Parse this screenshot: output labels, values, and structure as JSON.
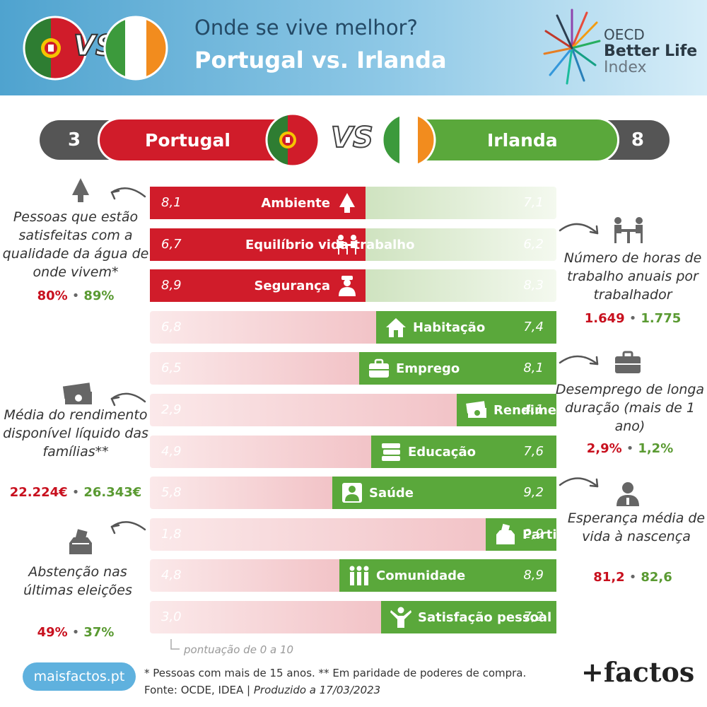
{
  "header": {
    "title_line1": "Onde se vive melhor?",
    "title_line2": "Portugal vs. Irlanda",
    "vs": "VS",
    "oecd_line1": "OECD",
    "oecd_line2": "Better Life",
    "oecd_line3": "Index"
  },
  "scoreboard": {
    "left_score": "3",
    "left_country": "Portugal",
    "vs": "VS",
    "right_country": "Irlanda",
    "right_score": "8"
  },
  "colors": {
    "portugal": "#d01c2a",
    "ireland": "#5aa83b",
    "portugal_light": "#f2c3c7",
    "ireland_light": "#cfe3c0"
  },
  "chart_data": {
    "type": "bar",
    "ylim": [
      0,
      10
    ],
    "series": [
      {
        "name": "Portugal"
      },
      {
        "name": "Irlanda"
      }
    ],
    "categories": [
      {
        "label": "Ambiente",
        "pt": "8,1",
        "ie": "7,1",
        "pt_val": 8.1,
        "ie_val": 7.1,
        "icon": "tree-icon"
      },
      {
        "label": "Equilíbrio vida-trabalho",
        "pt": "6,7",
        "ie": "6,2",
        "pt_val": 6.7,
        "ie_val": 6.2,
        "icon": "people-table-icon"
      },
      {
        "label": "Segurança",
        "pt": "8,9",
        "ie": "8,3",
        "pt_val": 8.9,
        "ie_val": 8.3,
        "icon": "police-icon"
      },
      {
        "label": "Habitação",
        "pt": "6,8",
        "ie": "7,4",
        "pt_val": 6.8,
        "ie_val": 7.4,
        "icon": "house-icon"
      },
      {
        "label": "Emprego",
        "pt": "6,5",
        "ie": "8,1",
        "pt_val": 6.5,
        "ie_val": 8.1,
        "icon": "briefcase-icon"
      },
      {
        "label": "Rendimento",
        "pt": "2,9",
        "ie": "4,1",
        "pt_val": 2.9,
        "ie_val": 4.1,
        "icon": "money-icon"
      },
      {
        "label": "Educação",
        "pt": "4,9",
        "ie": "7,6",
        "pt_val": 4.9,
        "ie_val": 7.6,
        "icon": "books-icon"
      },
      {
        "label": "Saúde",
        "pt": "5,8",
        "ie": "9,2",
        "pt_val": 5.8,
        "ie_val": 9.2,
        "icon": "doctor-icon"
      },
      {
        "label": "Participação cívica",
        "pt": "1,8",
        "ie": "2,9",
        "pt_val": 1.8,
        "ie_val": 2.9,
        "icon": "ballot-box-icon"
      },
      {
        "label": "Comunidade",
        "pt": "4,8",
        "ie": "8,9",
        "pt_val": 4.8,
        "ie_val": 8.9,
        "icon": "community-icon"
      },
      {
        "label": "Satisfação pessoal",
        "pt": "3,0",
        "ie": "7,2",
        "pt_val": 3.0,
        "ie_val": 7.2,
        "icon": "happy-person-icon"
      }
    ],
    "scale_note": "pontuação de 0 a 10"
  },
  "notes": {
    "water_text": "Pessoas que estão satisfeitas com a qualidade da água de onde vivem*",
    "water_pt": "80%",
    "water_ie": "89%",
    "hours_text": "Número de horas de trabalho anuais por trabalhador",
    "hours_pt": "1.649",
    "hours_ie": "1.775",
    "unemp_text": "Desemprego de longa duração (mais de 1 ano)",
    "unemp_pt": "2,9%",
    "unemp_ie": "1,2%",
    "income_text": "Média do rendimento disponível líquido das famílias**",
    "income_pt": "22.224€",
    "income_ie": "26.343€",
    "life_text": "Esperança média de vida à nascença",
    "life_pt": "81,2",
    "life_ie": "82,6",
    "abst_text": "Abstenção nas últimas eleições",
    "abst_pt": "49%",
    "abst_ie": "37%"
  },
  "footer": {
    "brand_url": "maisfactos.pt",
    "footnote": "* Pessoas com mais de 15 anos. ** Em paridade de poderes de compra.",
    "source": "Fonte: OCDE, IDEA | ",
    "produced": "Produzido a 17/03/2023",
    "logo": "+factos"
  }
}
